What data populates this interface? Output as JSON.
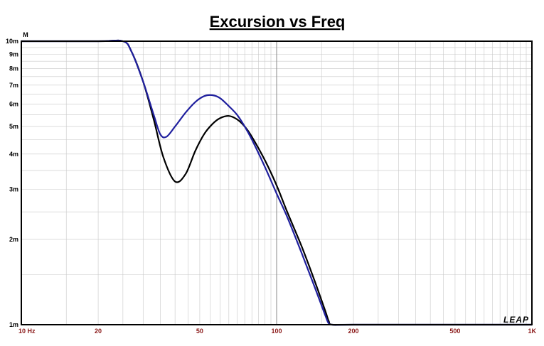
{
  "chart_data": {
    "type": "line",
    "title": "Excursion vs Freq",
    "y_unit": "M",
    "logo": "LEAP",
    "x_scale": "log",
    "y_scale": "log",
    "xlim": [
      10,
      1000
    ],
    "ylim": [
      0.001,
      0.01
    ],
    "grid": true,
    "legend": "none",
    "x_ticks": [
      {
        "value": 10,
        "label": "10  Hz"
      },
      {
        "value": 20,
        "label": "20"
      },
      {
        "value": 50,
        "label": "50"
      },
      {
        "value": 100,
        "label": "100"
      },
      {
        "value": 200,
        "label": "200"
      },
      {
        "value": 500,
        "label": "500"
      },
      {
        "value": 1000,
        "label": "1K"
      }
    ],
    "y_ticks": [
      {
        "value": 0.01,
        "label": "10m"
      },
      {
        "value": 0.009,
        "label": "9m"
      },
      {
        "value": 0.008,
        "label": "8m"
      },
      {
        "value": 0.007,
        "label": "7m"
      },
      {
        "value": 0.006,
        "label": "6m"
      },
      {
        "value": 0.005,
        "label": "5m"
      },
      {
        "value": 0.004,
        "label": "4m"
      },
      {
        "value": 0.003,
        "label": "3m"
      },
      {
        "value": 0.002,
        "label": "2m"
      },
      {
        "value": 0.001,
        "label": "1m"
      }
    ],
    "series": [
      {
        "color": "#000000",
        "x": [
          10,
          20,
          25,
          27,
          30,
          33,
          36,
          40,
          44,
          48,
          52,
          56,
          60,
          65,
          70,
          75,
          80,
          90,
          100,
          110,
          125,
          140,
          155,
          160,
          165,
          200,
          500,
          1000
        ],
        "y": [
          0.01,
          0.01,
          0.01,
          0.0092,
          0.0072,
          0.0053,
          0.0039,
          0.0032,
          0.0034,
          0.0041,
          0.0047,
          0.0051,
          0.00535,
          0.00545,
          0.0053,
          0.005,
          0.0046,
          0.0038,
          0.0031,
          0.0025,
          0.0019,
          0.00145,
          0.00112,
          0.00103,
          0.001,
          0.001,
          0.001,
          0.001
        ]
      },
      {
        "color": "#1f1f9e",
        "x": [
          10,
          20,
          25,
          27,
          30,
          33,
          35,
          37,
          40,
          44,
          48,
          52,
          56,
          60,
          65,
          70,
          75,
          80,
          90,
          100,
          110,
          125,
          140,
          155,
          160,
          165,
          200,
          500,
          1000
        ],
        "y": [
          0.01,
          0.01,
          0.01,
          0.0092,
          0.0072,
          0.0055,
          0.0047,
          0.0046,
          0.005,
          0.0056,
          0.0061,
          0.0064,
          0.00645,
          0.0063,
          0.0059,
          0.0055,
          0.005,
          0.0045,
          0.0036,
          0.0029,
          0.0024,
          0.0018,
          0.00138,
          0.00108,
          0.00101,
          0.001,
          0.001,
          0.001,
          0.001
        ]
      }
    ]
  }
}
